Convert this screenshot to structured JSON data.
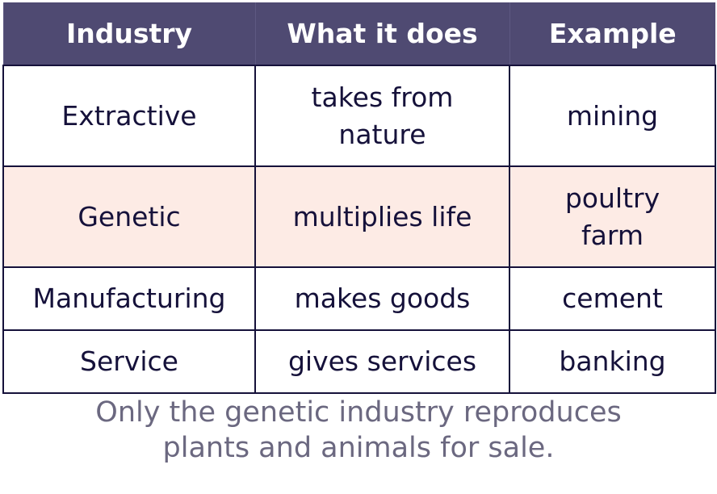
{
  "table": {
    "header": [
      "Industry",
      "What it does",
      "Example"
    ],
    "rows": [
      [
        "Extractive",
        "takes from nature",
        "mining"
      ],
      [
        "Genetic",
        "multiplies life",
        "poultry farm"
      ],
      [
        "Manufacturing",
        "makes goods",
        "cement"
      ],
      [
        "Service",
        "gives services",
        "banking"
      ]
    ]
  },
  "caption": "Only the genetic industry reproduces plants and animals for sale."
}
